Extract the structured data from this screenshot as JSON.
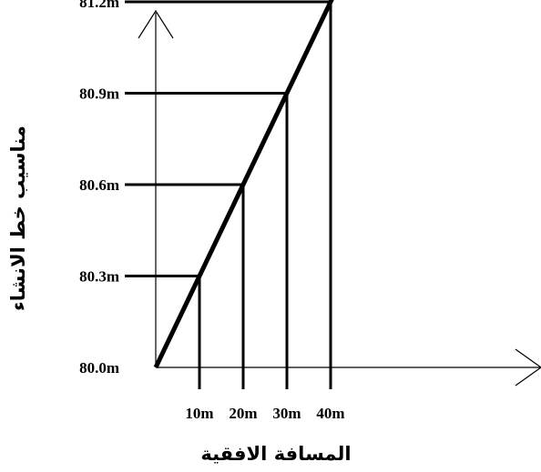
{
  "chart_data": {
    "type": "line",
    "x_unit": "m",
    "y_unit": "m",
    "x": [
      0,
      10,
      20,
      30,
      40
    ],
    "y": [
      80.0,
      80.3,
      80.6,
      80.9,
      81.2
    ],
    "x_tick_labels": [
      "10m",
      "20m",
      "30m",
      "40m"
    ],
    "y_tick_labels": [
      "80.0m",
      "80.3m",
      "80.6m",
      "80.9m",
      "81.2m"
    ],
    "xlabel": "المسافة الافقية",
    "ylabel": "مناسيب خط الانشاء",
    "title": "",
    "grid": false,
    "xlim": [
      0,
      40
    ],
    "ylim": [
      80.0,
      81.2
    ]
  }
}
